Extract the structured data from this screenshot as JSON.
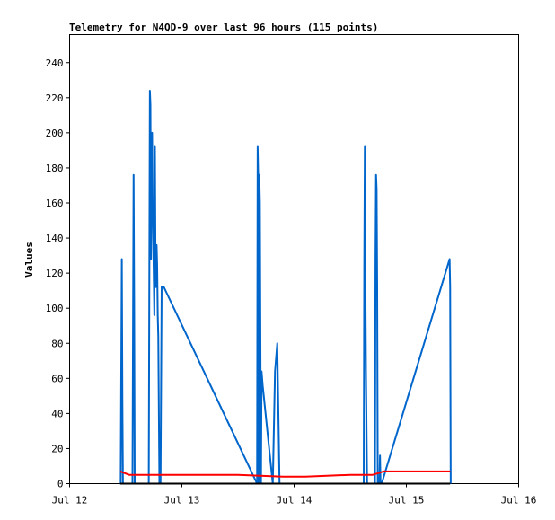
{
  "chart_data": {
    "type": "line",
    "title": "Telemetry for N4QD-9 over last 96 hours (115 points)",
    "xlabel": "",
    "ylabel": "Values",
    "xlim": [
      12,
      16
    ],
    "ylim": [
      0,
      256
    ],
    "x_ticks": [
      {
        "value": 12,
        "label": "Jul 12"
      },
      {
        "value": 13,
        "label": "Jul 13"
      },
      {
        "value": 14,
        "label": "Jul 14"
      },
      {
        "value": 15,
        "label": "Jul 15"
      },
      {
        "value": 16,
        "label": "Jul 16"
      }
    ],
    "y_ticks": [
      0,
      20,
      40,
      60,
      80,
      100,
      120,
      140,
      160,
      180,
      200,
      220,
      240
    ],
    "grid": false,
    "series": [
      {
        "color": "#0066CC",
        "x": [
          12.455,
          12.46,
          12.465,
          12.47,
          12.475,
          12.48,
          12.56,
          12.565,
          12.57,
          12.575,
          12.58,
          12.705,
          12.71,
          12.715,
          12.72,
          12.725,
          12.73,
          12.735,
          12.74,
          12.755,
          12.76,
          12.765,
          12.77,
          12.775,
          12.78,
          12.785,
          12.79,
          12.8,
          12.81,
          12.82,
          12.83,
          12.84,
          13.67,
          13.675,
          13.68,
          13.685,
          13.69,
          13.695,
          13.7,
          13.705,
          13.71,
          13.72,
          13.81,
          13.83,
          13.84,
          13.85,
          13.86,
          13.87,
          14.62,
          14.625,
          14.63,
          14.635,
          14.64,
          14.65,
          14.72,
          14.725,
          14.73,
          14.735,
          14.74,
          14.745,
          14.76,
          14.765,
          14.77,
          14.78,
          15.385,
          15.39,
          15.395
        ],
        "y": [
          0,
          64,
          128,
          48,
          0,
          0,
          0,
          88,
          176,
          104,
          0,
          0,
          112,
          224,
          216,
          128,
          176,
          200,
          160,
          96,
          192,
          128,
          112,
          136,
          124,
          96,
          84,
          0,
          0,
          112,
          112,
          112,
          0,
          192,
          176,
          0,
          176,
          160,
          80,
          0,
          64,
          56,
          0,
          64,
          72,
          80,
          40,
          0,
          0,
          128,
          192,
          112,
          64,
          0,
          0,
          128,
          176,
          168,
          112,
          0,
          0,
          16,
          0,
          0,
          128,
          112,
          0
        ]
      },
      {
        "color": "#FF0000",
        "x": [
          12.45,
          12.53,
          12.6,
          12.85,
          13.5,
          13.9,
          14.1,
          14.5,
          14.6,
          14.7,
          14.75,
          14.8,
          15.0,
          15.39
        ],
        "y": [
          7,
          5,
          5,
          5,
          5,
          4,
          4,
          5,
          5,
          5,
          6,
          7,
          7,
          7
        ]
      },
      {
        "color": "#000000",
        "x": [
          12.45,
          15.39
        ],
        "y": [
          0,
          0
        ]
      }
    ]
  }
}
